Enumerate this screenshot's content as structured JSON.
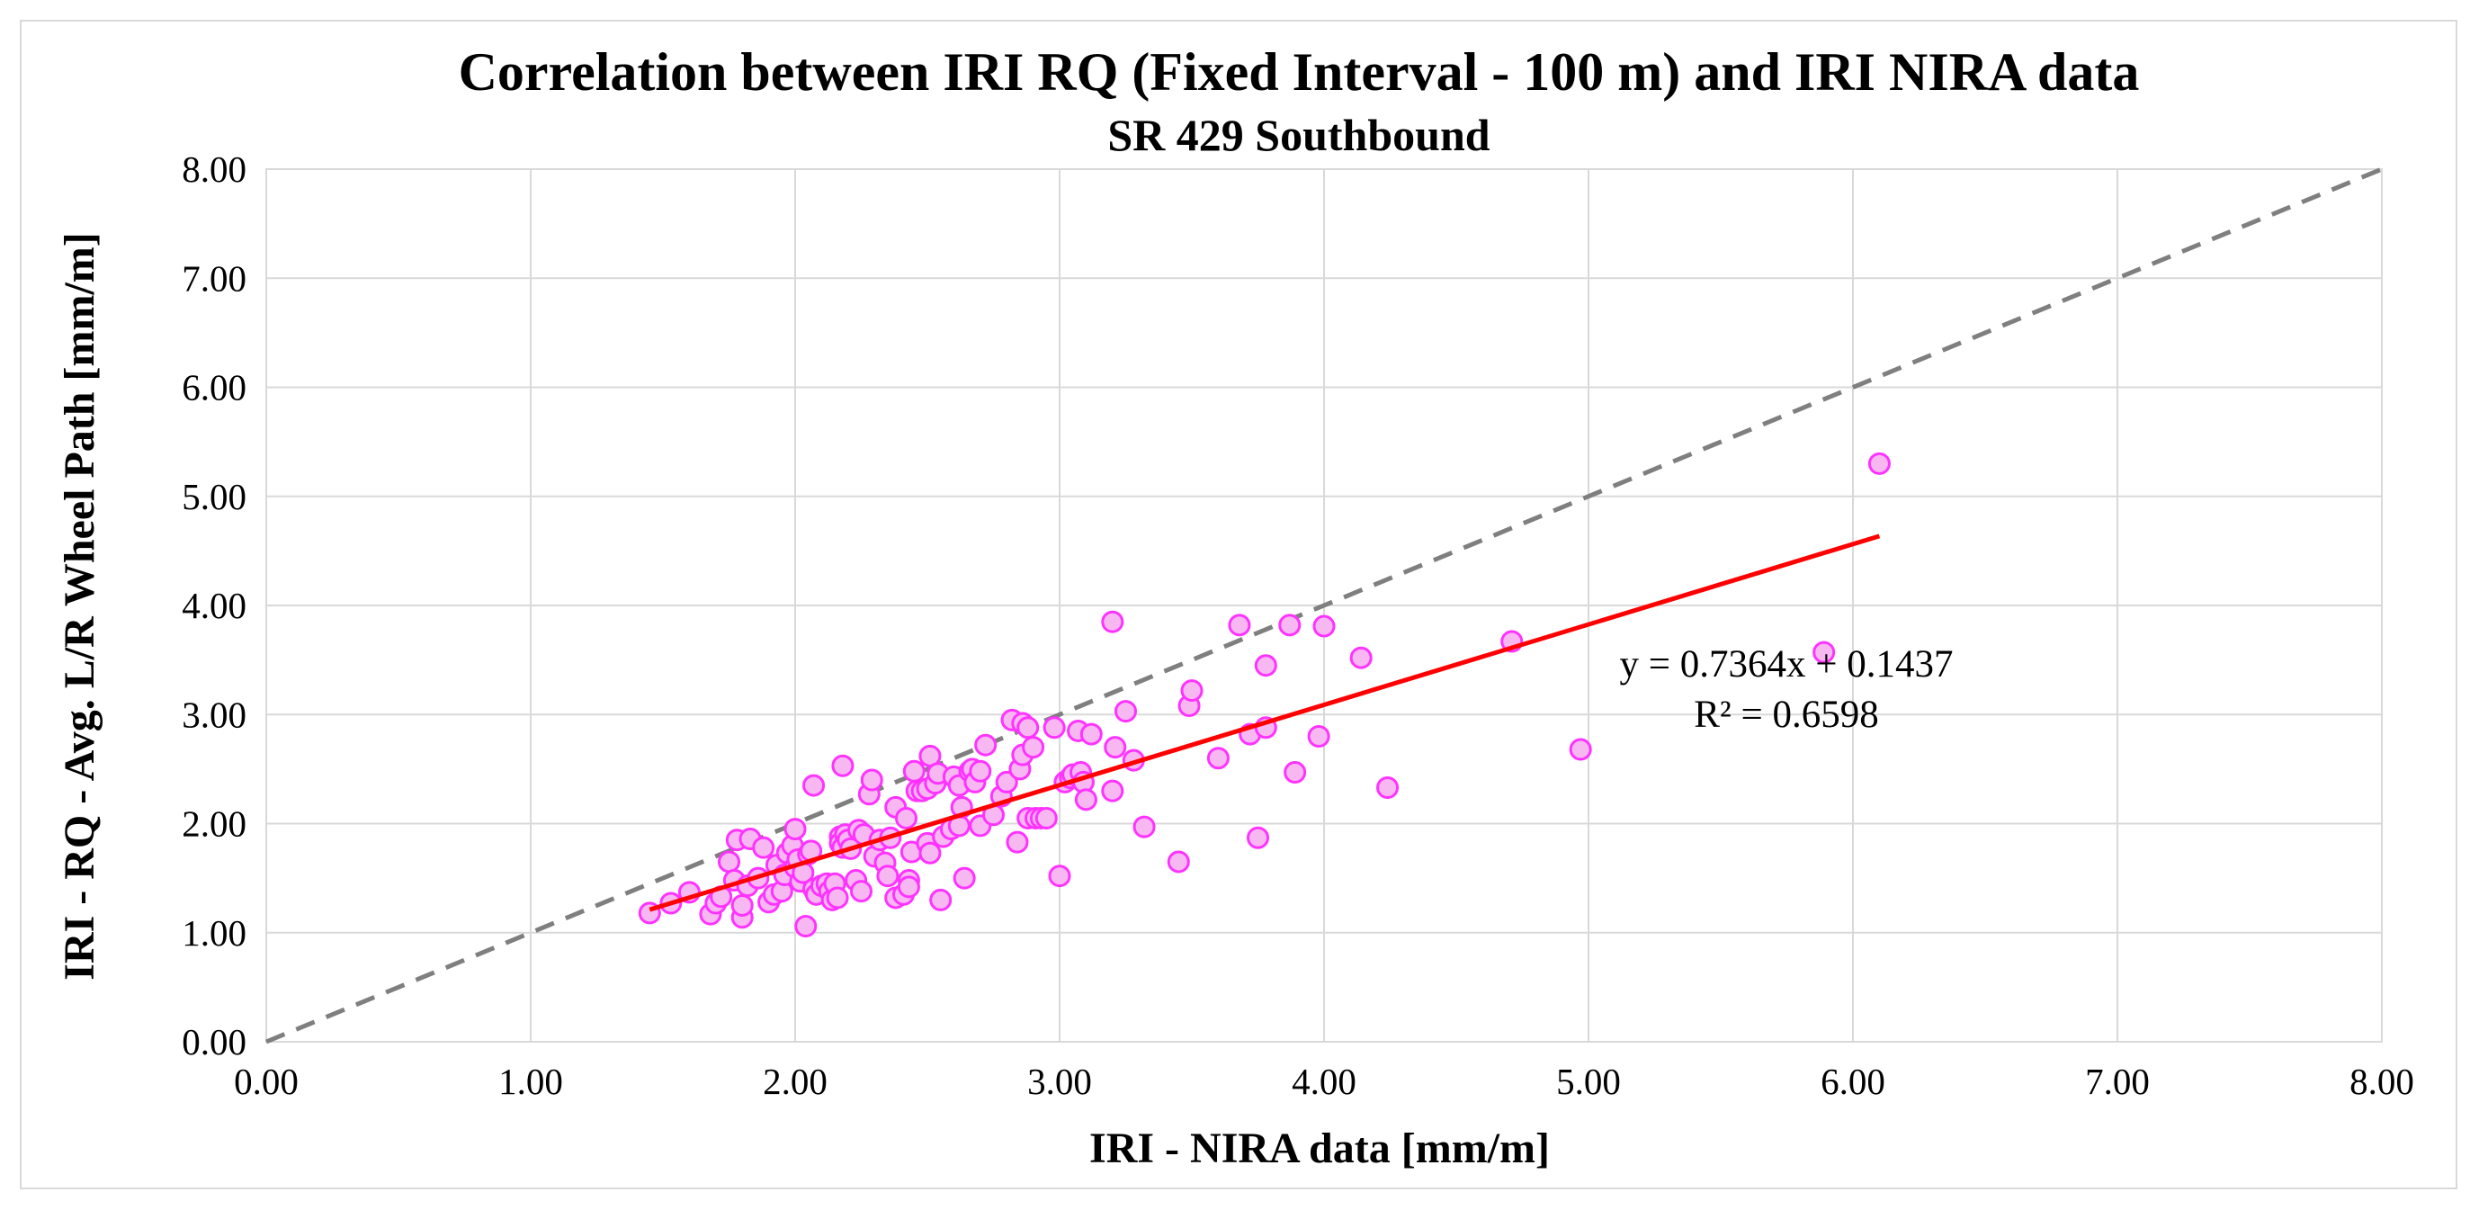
{
  "chart_data": {
    "type": "scatter",
    "title": "Correlation between IRI RQ (Fixed Interval - 100 m) and IRI NIRA data",
    "subtitle": "SR 429 Southbound",
    "xlabel": "IRI - NIRA data [mm/m]",
    "ylabel": "IRI - RQ - Avg. L/R  Wheel Path [mm/m]",
    "xlim": [
      0,
      8
    ],
    "ylim": [
      0,
      8
    ],
    "x_ticks": [
      "0.00",
      "1.00",
      "2.00",
      "3.00",
      "4.00",
      "5.00",
      "6.00",
      "7.00",
      "8.00"
    ],
    "y_ticks": [
      "0.00",
      "1.00",
      "2.00",
      "3.00",
      "4.00",
      "5.00",
      "6.00",
      "7.00",
      "8.00"
    ],
    "grid": true,
    "series": [
      {
        "marker_color": "#ff33ff",
        "marker_fill": "#f7b8f2",
        "points": [
          [
            1.45,
            1.18
          ],
          [
            1.53,
            1.27
          ],
          [
            1.6,
            1.37
          ],
          [
            1.68,
            1.17
          ],
          [
            1.7,
            1.27
          ],
          [
            1.72,
            1.33
          ],
          [
            1.75,
            1.65
          ],
          [
            1.77,
            1.48
          ],
          [
            1.78,
            1.85
          ],
          [
            1.8,
            1.14
          ],
          [
            1.8,
            1.25
          ],
          [
            1.82,
            1.43
          ],
          [
            1.83,
            1.86
          ],
          [
            1.86,
            1.5
          ],
          [
            1.88,
            1.78
          ],
          [
            1.9,
            1.28
          ],
          [
            1.92,
            1.35
          ],
          [
            1.93,
            1.62
          ],
          [
            1.95,
            1.38
          ],
          [
            1.96,
            1.53
          ],
          [
            1.97,
            1.73
          ],
          [
            1.99,
            1.8
          ],
          [
            2.0,
            1.95
          ],
          [
            2.0,
            1.6
          ],
          [
            2.01,
            1.67
          ],
          [
            2.02,
            1.47
          ],
          [
            2.03,
            1.55
          ],
          [
            2.04,
            1.06
          ],
          [
            2.05,
            1.72
          ],
          [
            2.06,
            1.75
          ],
          [
            2.07,
            1.4
          ],
          [
            2.08,
            1.35
          ],
          [
            2.07,
            2.35
          ],
          [
            2.1,
            1.43
          ],
          [
            2.12,
            1.45
          ],
          [
            2.13,
            1.38
          ],
          [
            2.14,
            1.3
          ],
          [
            2.15,
            1.45
          ],
          [
            2.16,
            1.32
          ],
          [
            2.17,
            1.88
          ],
          [
            2.17,
            1.82
          ],
          [
            2.18,
            1.78
          ],
          [
            2.18,
            2.53
          ],
          [
            2.19,
            1.9
          ],
          [
            2.2,
            1.85
          ],
          [
            2.21,
            1.77
          ],
          [
            2.23,
            1.48
          ],
          [
            2.24,
            1.94
          ],
          [
            2.25,
            1.38
          ],
          [
            2.26,
            1.9
          ],
          [
            2.28,
            2.27
          ],
          [
            2.29,
            2.4
          ],
          [
            2.3,
            1.7
          ],
          [
            2.32,
            1.85
          ],
          [
            2.34,
            1.64
          ],
          [
            2.35,
            1.52
          ],
          [
            2.36,
            1.87
          ],
          [
            2.38,
            1.32
          ],
          [
            2.38,
            2.15
          ],
          [
            2.41,
            1.35
          ],
          [
            2.42,
            2.05
          ],
          [
            2.43,
            1.48
          ],
          [
            2.43,
            1.42
          ],
          [
            2.44,
            1.74
          ],
          [
            2.45,
            2.48
          ],
          [
            2.46,
            2.3
          ],
          [
            2.48,
            2.3
          ],
          [
            2.5,
            2.32
          ],
          [
            2.5,
            1.82
          ],
          [
            2.51,
            2.62
          ],
          [
            2.51,
            1.73
          ],
          [
            2.53,
            2.37
          ],
          [
            2.54,
            2.46
          ],
          [
            2.55,
            1.3
          ],
          [
            2.56,
            1.88
          ],
          [
            2.59,
            1.95
          ],
          [
            2.6,
            2.43
          ],
          [
            2.62,
            2.35
          ],
          [
            2.62,
            1.98
          ],
          [
            2.63,
            2.15
          ],
          [
            2.64,
            1.5
          ],
          [
            2.66,
            2.48
          ],
          [
            2.67,
            2.5
          ],
          [
            2.68,
            2.38
          ],
          [
            2.7,
            1.98
          ],
          [
            2.7,
            2.48
          ],
          [
            2.72,
            2.72
          ],
          [
            2.75,
            2.08
          ],
          [
            2.78,
            2.25
          ],
          [
            2.8,
            2.38
          ],
          [
            2.82,
            2.95
          ],
          [
            2.84,
            1.83
          ],
          [
            2.85,
            2.5
          ],
          [
            2.86,
            2.92
          ],
          [
            2.86,
            2.63
          ],
          [
            2.88,
            2.88
          ],
          [
            2.88,
            2.05
          ],
          [
            2.9,
            2.7
          ],
          [
            2.91,
            2.05
          ],
          [
            2.93,
            2.05
          ],
          [
            2.95,
            2.05
          ],
          [
            2.98,
            2.88
          ],
          [
            3.0,
            1.52
          ],
          [
            3.02,
            2.38
          ],
          [
            3.04,
            2.42
          ],
          [
            3.05,
            2.45
          ],
          [
            3.07,
            2.85
          ],
          [
            3.08,
            2.47
          ],
          [
            3.09,
            2.38
          ],
          [
            3.1,
            2.22
          ],
          [
            3.12,
            2.82
          ],
          [
            3.2,
            3.85
          ],
          [
            3.2,
            2.3
          ],
          [
            3.21,
            2.7
          ],
          [
            3.25,
            3.03
          ],
          [
            3.28,
            2.58
          ],
          [
            3.32,
            1.97
          ],
          [
            3.45,
            1.65
          ],
          [
            3.49,
            3.08
          ],
          [
            3.5,
            3.22
          ],
          [
            3.6,
            2.6
          ],
          [
            3.68,
            3.82
          ],
          [
            3.72,
            2.82
          ],
          [
            3.75,
            1.87
          ],
          [
            3.78,
            3.45
          ],
          [
            3.78,
            2.88
          ],
          [
            3.87,
            3.82
          ],
          [
            3.89,
            2.47
          ],
          [
            3.98,
            2.8
          ],
          [
            4.0,
            3.81
          ],
          [
            4.14,
            3.52
          ],
          [
            4.24,
            2.33
          ],
          [
            4.71,
            3.67
          ],
          [
            4.97,
            2.68
          ],
          [
            5.89,
            3.57
          ],
          [
            6.1,
            5.3
          ]
        ]
      }
    ],
    "trendline": {
      "equation": "y = 0.7364x + 0.1437",
      "r_squared": "R² = 0.6598",
      "slope": 0.7364,
      "intercept": 0.1437,
      "x_range": [
        1.45,
        6.1
      ],
      "color": "#ff0000"
    },
    "reference_line": {
      "style": "dashed",
      "color": "#7f7f7f",
      "from": [
        0,
        0
      ],
      "to": [
        8,
        8
      ]
    }
  }
}
